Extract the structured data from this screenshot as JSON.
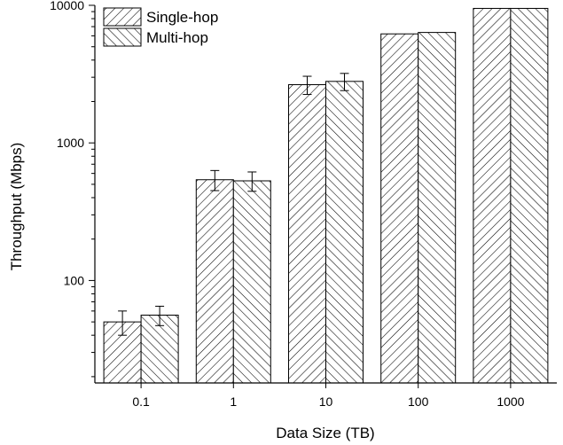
{
  "chart_data": {
    "type": "bar",
    "categories": [
      "0.1",
      "1",
      "10",
      "100",
      "1000"
    ],
    "series": [
      {
        "name": "Single-hop",
        "values": [
          50,
          540,
          2650,
          6200,
          9500
        ],
        "error": [
          10,
          90,
          400,
          0,
          0
        ],
        "pattern": "hatch-forward"
      },
      {
        "name": "Multi-hop",
        "values": [
          56,
          530,
          2800,
          6350,
          9500
        ],
        "error": [
          9,
          85,
          400,
          0,
          0
        ],
        "pattern": "hatch-backward"
      }
    ],
    "title": "",
    "xlabel": "Data Size (TB)",
    "ylabel": "Throughput (Mbps)",
    "yscale": "log",
    "ylim": [
      18,
      10000
    ],
    "yticks": [
      {
        "value": 100,
        "label": "100"
      },
      {
        "value": 1000,
        "label": "1000"
      },
      {
        "value": 10000,
        "label": "10000"
      }
    ],
    "grid": false,
    "legend_position": "top-left",
    "colors": {
      "bar_fill": "#ffffff",
      "hatch": "#000000",
      "axis": "#000000"
    }
  }
}
